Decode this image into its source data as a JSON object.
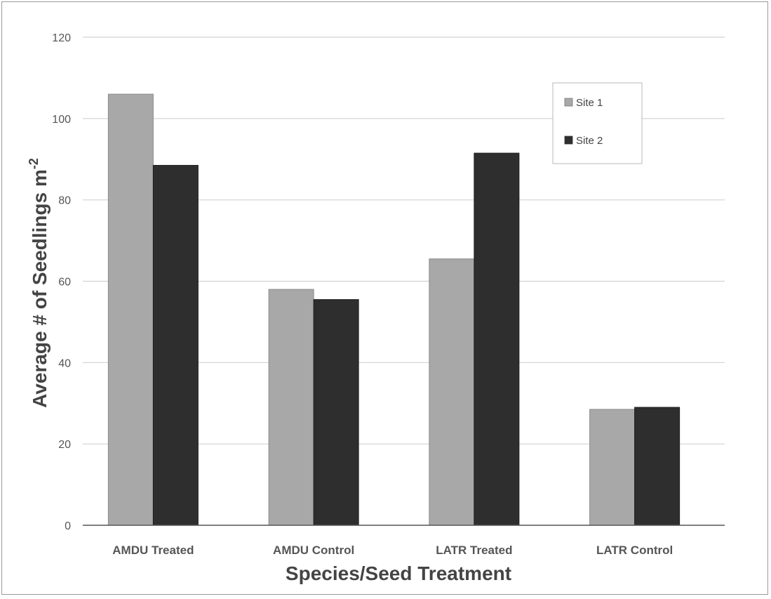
{
  "chart_data": {
    "type": "bar",
    "title": "",
    "xlabel": "Species/Seed Treatment",
    "ylabel": "Average # of Seedlings m",
    "ylabel_superscript": "-2",
    "categories": [
      "AMDU Treated",
      "AMDU Control",
      "LATR Treated",
      "LATR Control"
    ],
    "series": [
      {
        "name": "Site 1",
        "color": "#a8a8a8",
        "values": [
          106,
          58,
          65.5,
          28.5
        ]
      },
      {
        "name": "Site 2",
        "color": "#2e2e2e",
        "values": [
          88.5,
          55.5,
          91.5,
          29
        ]
      }
    ],
    "ylim": [
      0,
      120
    ],
    "yticks": [
      0,
      20,
      40,
      60,
      80,
      100,
      120
    ],
    "grid": true,
    "legend_position": "top-right"
  }
}
